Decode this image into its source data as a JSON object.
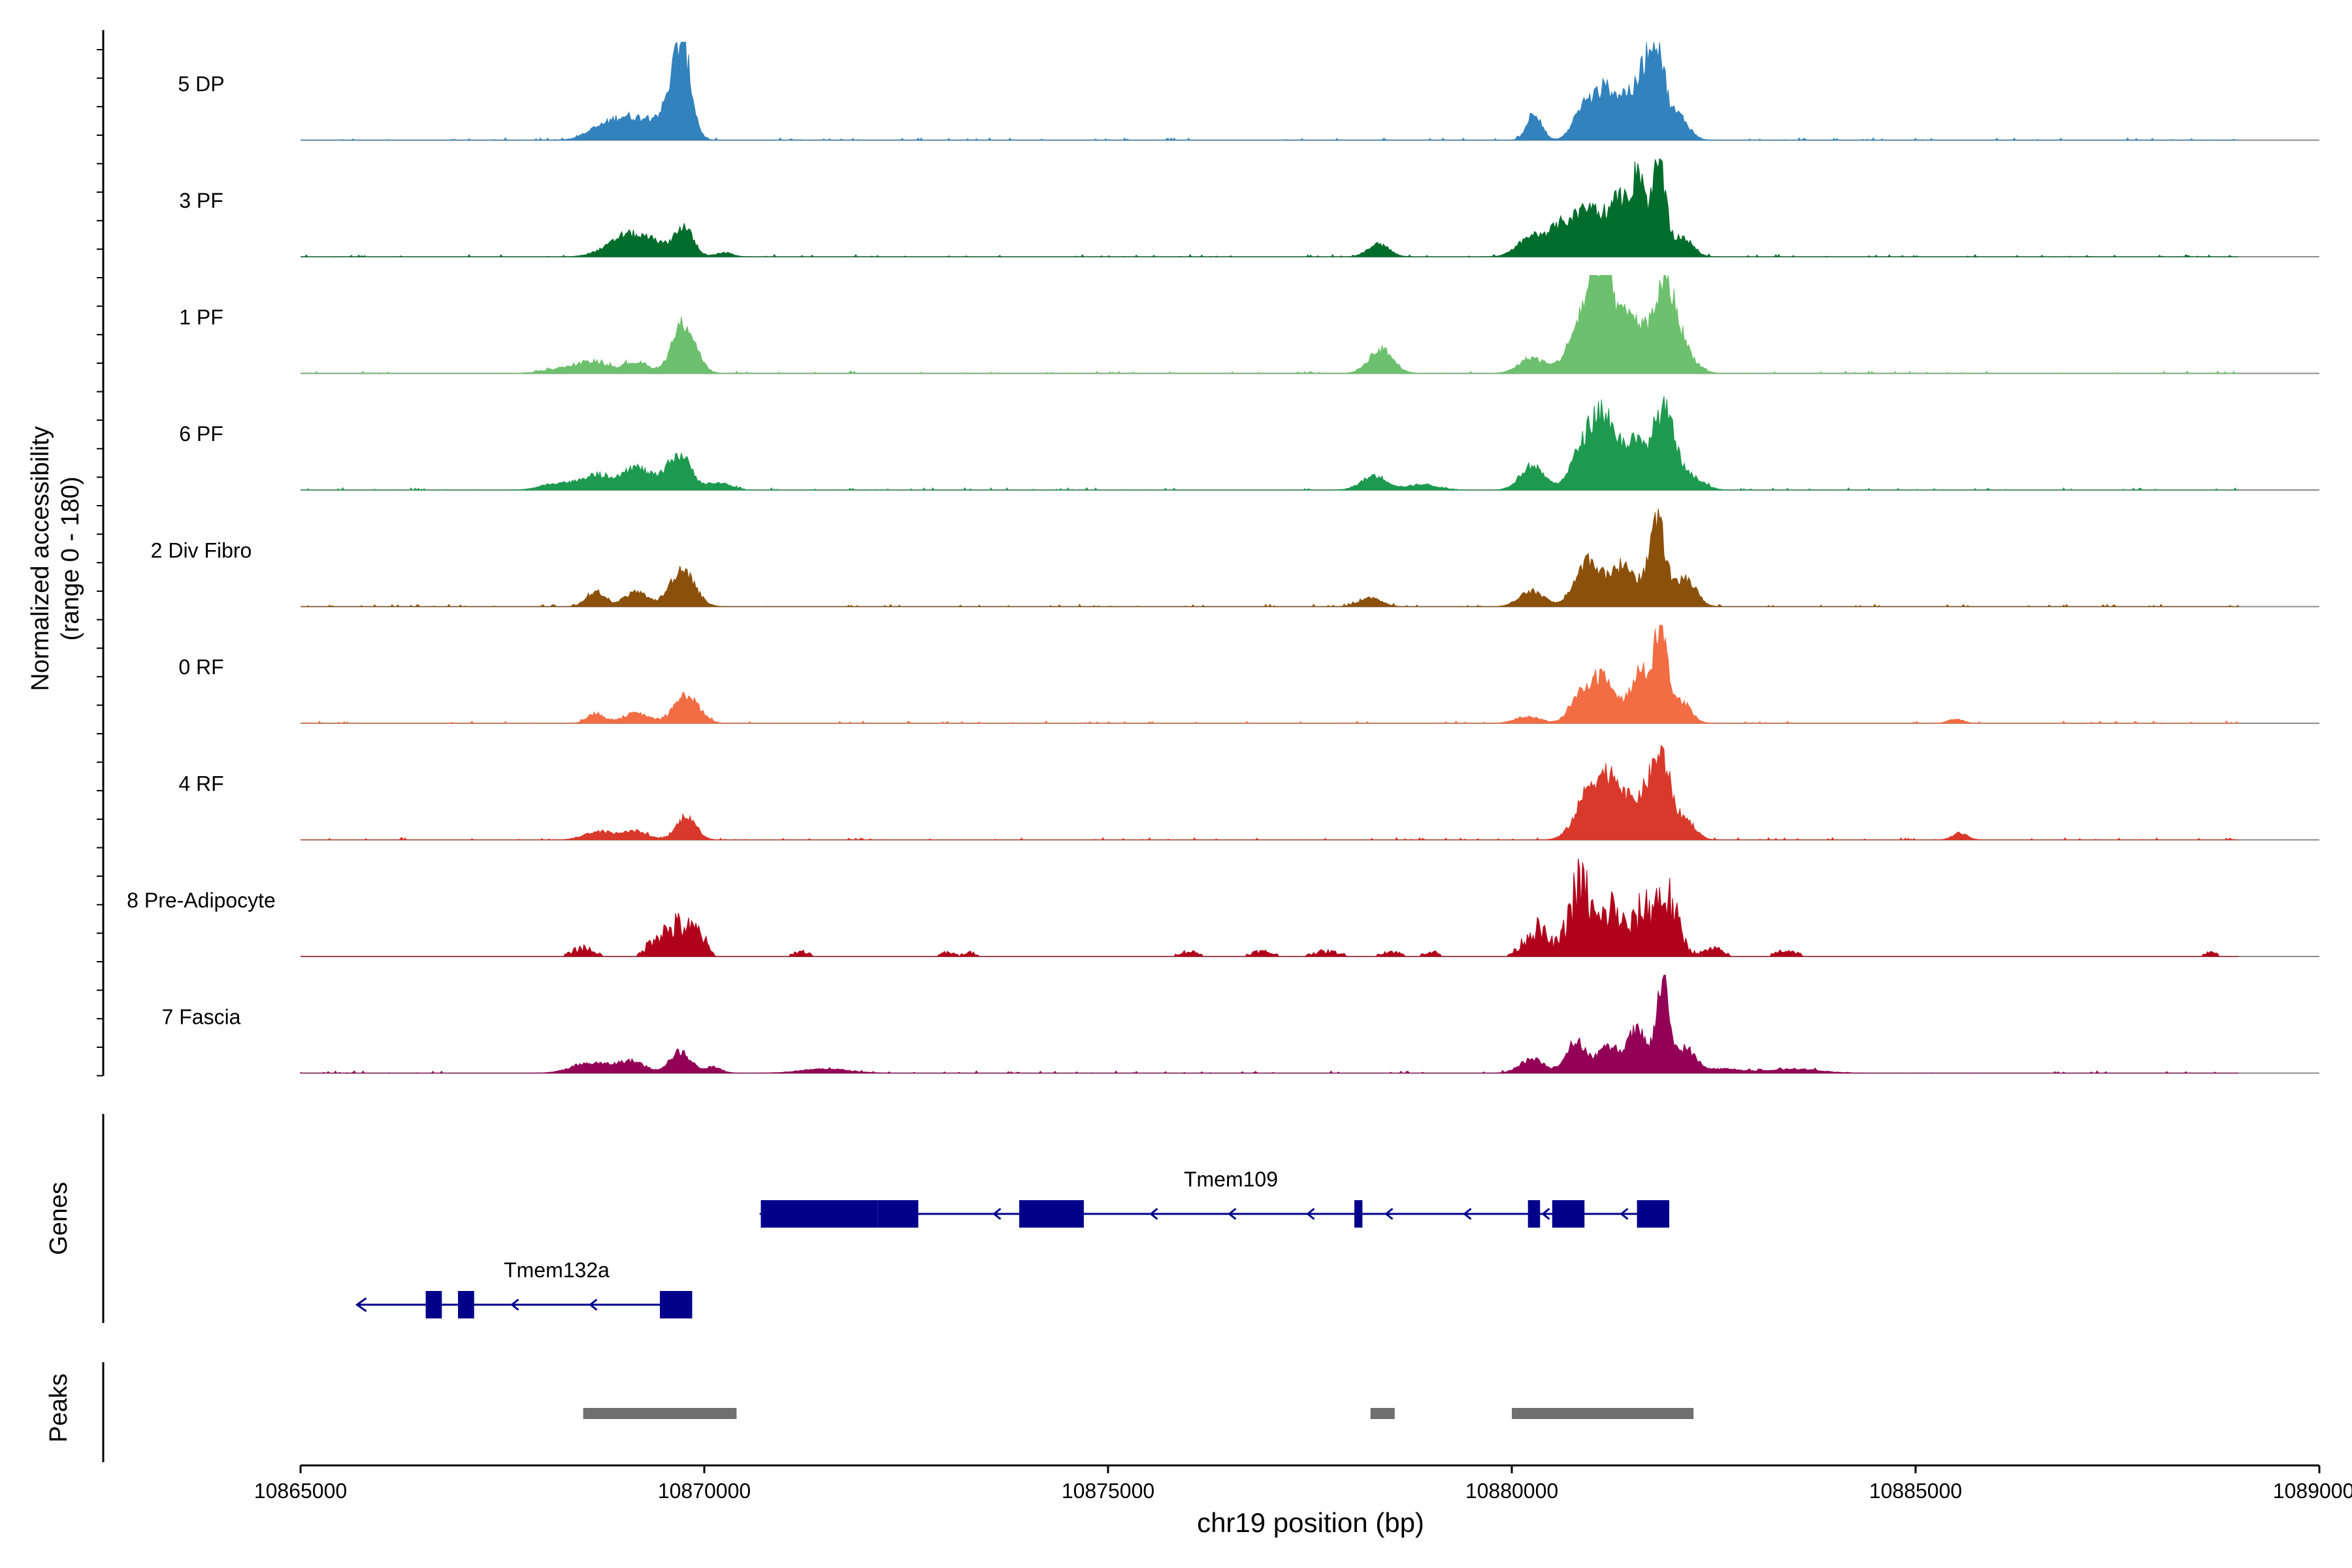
{
  "chart_data": {
    "type": "area",
    "title": "",
    "ylabel_line1": "Normalized accessibility",
    "ylabel_line2": "(range 0 - 180)",
    "xlabel": "chr19 position (bp)",
    "xlim": [
      10865000,
      10890000
    ],
    "x_ticks": [
      "10865000",
      "10870000",
      "10875000",
      "10880000",
      "10885000",
      "10890000"
    ],
    "region": [
      10865000,
      10889000
    ],
    "tracks": [
      {
        "name": "5 DP",
        "color": "#3282BD",
        "scale": 1.0,
        "pattern": "none",
        "peaks": [
          [
            10868700,
            8,
            180
          ],
          [
            10869000,
            13,
            160
          ],
          [
            10869350,
            14,
            180
          ],
          [
            10869730,
            54,
            110
          ],
          [
            10869640,
            18,
            130
          ],
          [
            10880280,
            20,
            90
          ],
          [
            10880900,
            24,
            130
          ],
          [
            10881180,
            34,
            130
          ],
          [
            10881450,
            28,
            110
          ],
          [
            10881800,
            62,
            90
          ],
          [
            10881650,
            38,
            90
          ],
          [
            10882050,
            18,
            130
          ]
        ]
      },
      {
        "name": "3 PF",
        "color": "#006D2C",
        "scale": 1.0,
        "pattern": "none",
        "peaks": [
          [
            10868800,
            5,
            180
          ],
          [
            10869050,
            13,
            150
          ],
          [
            10869350,
            11,
            150
          ],
          [
            10869740,
            21,
            120
          ],
          [
            10870250,
            3,
            100
          ],
          [
            10878350,
            9,
            130
          ],
          [
            10880250,
            14,
            170
          ],
          [
            10880650,
            22,
            170
          ],
          [
            10881000,
            32,
            160
          ],
          [
            10881350,
            38,
            130
          ],
          [
            10881580,
            54,
            80
          ],
          [
            10881820,
            65,
            80
          ],
          [
            10882100,
            14,
            130
          ]
        ]
      },
      {
        "name": "1 PF",
        "color": "#6DC06D",
        "scale": 1.0,
        "pattern": "none",
        "peaks": [
          [
            10868300,
            4,
            250
          ],
          [
            10868650,
            7,
            170
          ],
          [
            10869150,
            8,
            160
          ],
          [
            10869750,
            36,
            140
          ],
          [
            10878380,
            17,
            150
          ],
          [
            10880250,
            11,
            160
          ],
          [
            10880900,
            38,
            180
          ],
          [
            10881150,
            60,
            150
          ],
          [
            10881500,
            35,
            130
          ],
          [
            10881900,
            64,
            150
          ],
          [
            10882200,
            8,
            130
          ]
        ]
      },
      {
        "name": "6 PF",
        "color": "#1E9A50",
        "scale": 1.0,
        "pattern": "none",
        "peaks": [
          [
            10868200,
            5,
            200
          ],
          [
            10868650,
            10,
            170
          ],
          [
            10869150,
            16,
            190
          ],
          [
            10869690,
            25,
            150
          ],
          [
            10870200,
            5,
            130
          ],
          [
            10878300,
            10,
            160
          ],
          [
            10878900,
            4,
            180
          ],
          [
            10880250,
            17,
            150
          ],
          [
            10880900,
            30,
            160
          ],
          [
            10881150,
            46,
            140
          ],
          [
            10881500,
            32,
            140
          ],
          [
            10881880,
            56,
            140
          ],
          [
            10882250,
            8,
            140
          ]
        ]
      },
      {
        "name": "2 Div Fibro",
        "color": "#8B510A",
        "scale": 1.0,
        "pattern": "none",
        "peaks": [
          [
            10868650,
            11,
            110
          ],
          [
            10869150,
            10,
            150
          ],
          [
            10869730,
            27,
            150
          ],
          [
            10878250,
            6,
            140
          ],
          [
            10880250,
            11,
            150
          ],
          [
            10880950,
            33,
            160
          ],
          [
            10881400,
            30,
            150
          ],
          [
            10881800,
            60,
            100
          ],
          [
            10882150,
            20,
            130
          ]
        ]
      },
      {
        "name": "0 RF",
        "color": "#F26D43",
        "scale": 1.0,
        "pattern": "none",
        "peaks": [
          [
            10868650,
            7,
            100
          ],
          [
            10869150,
            7,
            170
          ],
          [
            10869780,
            20,
            150
          ],
          [
            10880200,
            5,
            150
          ],
          [
            10880850,
            20,
            130
          ],
          [
            10881150,
            34,
            140
          ],
          [
            10881600,
            36,
            130
          ],
          [
            10881850,
            65,
            80
          ],
          [
            10882100,
            15,
            120
          ],
          [
            10885500,
            3,
            90
          ]
        ]
      },
      {
        "name": "4 RF",
        "color": "#D8392A",
        "scale": 1.0,
        "pattern": "none",
        "peaks": [
          [
            10868700,
            6,
            180
          ],
          [
            10869150,
            6,
            150
          ],
          [
            10869780,
            17,
            120
          ],
          [
            10881000,
            38,
            180
          ],
          [
            10881300,
            34,
            150
          ],
          [
            10881650,
            28,
            130
          ],
          [
            10881860,
            52,
            110
          ],
          [
            10882150,
            14,
            120
          ],
          [
            10885550,
            5,
            90
          ]
        ]
      },
      {
        "name": "8 Pre-Adipocyte",
        "color": "#B1021C",
        "scale": 1.0,
        "pattern": "spiky",
        "peaks": [
          [
            10868500,
            7,
            130
          ],
          [
            10869400,
            13,
            110
          ],
          [
            10869700,
            25,
            160
          ],
          [
            10869950,
            12,
            80
          ],
          [
            10871200,
            4,
            100
          ],
          [
            10873000,
            3,
            90
          ],
          [
            10873300,
            3,
            90
          ],
          [
            10876000,
            4,
            120
          ],
          [
            10876900,
            4,
            140
          ],
          [
            10877700,
            4,
            180
          ],
          [
            10878500,
            4,
            120
          ],
          [
            10879000,
            4,
            90
          ],
          [
            10880300,
            22,
            150
          ],
          [
            10880850,
            58,
            140
          ],
          [
            10881250,
            38,
            120
          ],
          [
            10881900,
            48,
            150
          ],
          [
            10881600,
            30,
            120
          ],
          [
            10882500,
            6,
            120
          ],
          [
            10883400,
            5,
            130
          ],
          [
            10888650,
            3,
            90
          ]
        ]
      },
      {
        "name": "7 Fascia",
        "color": "#930157",
        "scale": 1.0,
        "pattern": "none",
        "peaks": [
          [
            10868600,
            7,
            230
          ],
          [
            10869100,
            8,
            170
          ],
          [
            10869700,
            15,
            130
          ],
          [
            10870100,
            4,
            110
          ],
          [
            10871500,
            3,
            300
          ],
          [
            10880250,
            10,
            150
          ],
          [
            10880800,
            22,
            130
          ],
          [
            10881200,
            18,
            130
          ],
          [
            10881550,
            30,
            120
          ],
          [
            10881870,
            64,
            80
          ],
          [
            10882150,
            17,
            120
          ],
          [
            10882600,
            3,
            250
          ],
          [
            10883500,
            3,
            300
          ]
        ]
      }
    ],
    "genes_label": "Genes",
    "genes": [
      {
        "name": "Tmem109",
        "strand": "-",
        "start": 10870700,
        "end": 10881950,
        "exons": [
          [
            10870700,
            10872150
          ],
          [
            10872150,
            10872650
          ],
          [
            10873900,
            10874700
          ],
          [
            10878050,
            10878150
          ],
          [
            10880200,
            10880350
          ],
          [
            10880500,
            10880900
          ],
          [
            10881550,
            10881950
          ]
        ]
      },
      {
        "name": "Tmem132a",
        "strand": "-",
        "start": 10865700,
        "end": 10869850,
        "exons": [
          [
            10866550,
            10866750
          ],
          [
            10866950,
            10867150
          ],
          [
            10869450,
            10869850
          ]
        ]
      }
    ],
    "peaks_label": "Peaks",
    "peak_regions": [
      [
        10868500,
        10870400
      ],
      [
        10878250,
        10878550
      ],
      [
        10880000,
        10882250
      ]
    ]
  },
  "colors": {
    "gene": "#00008B",
    "peak": "#707070",
    "baseline": "#8C8C8C",
    "axis": "#000000"
  }
}
